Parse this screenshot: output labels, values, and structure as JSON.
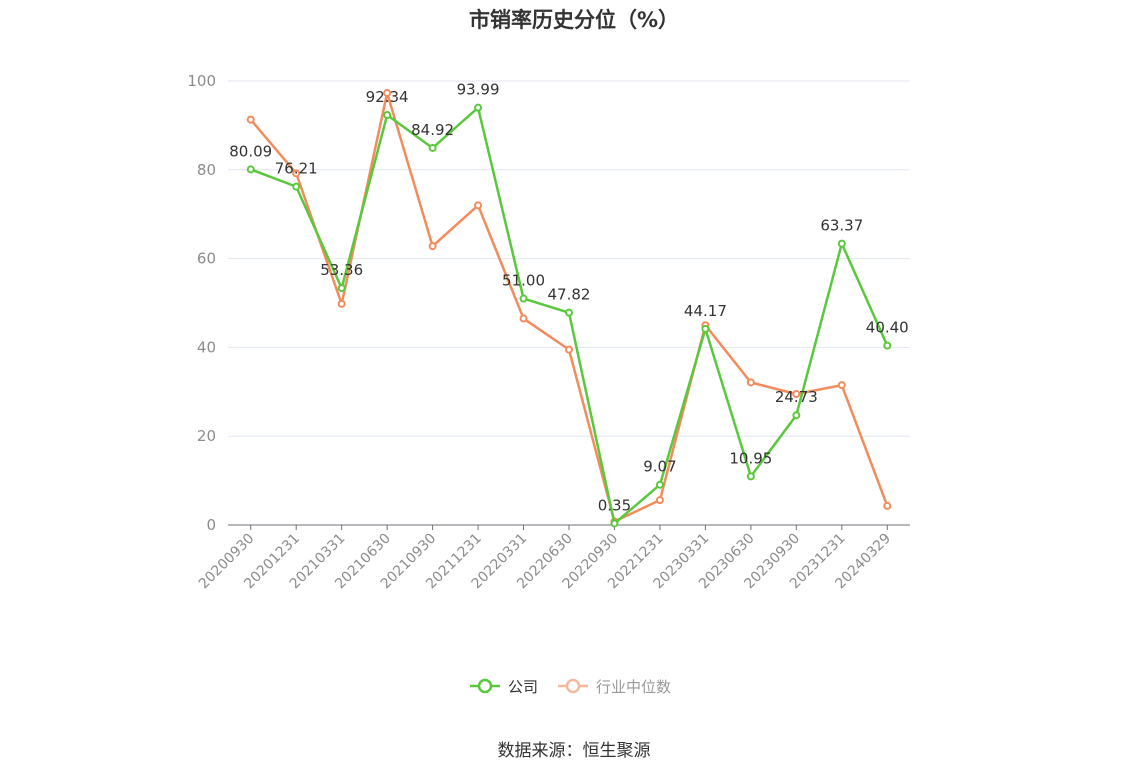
{
  "chart_data": {
    "type": "line",
    "title": "市销率历史分位（%）",
    "source_note": "数据来源：恒生聚源",
    "categories": [
      "20200930",
      "20201231",
      "20210331",
      "20210630",
      "20210930",
      "20211231",
      "20220331",
      "20220630",
      "20220930",
      "20221231",
      "20230331",
      "20230630",
      "20230930",
      "20231231",
      "20240329"
    ],
    "ylim": [
      0,
      100
    ],
    "yticks": [
      0,
      20,
      40,
      60,
      80,
      100
    ],
    "grid": true,
    "legend_placement": "bottom",
    "series": [
      {
        "name": "公司",
        "color": "#5ac83c",
        "values": [
          80.09,
          76.21,
          53.36,
          92.34,
          84.92,
          93.99,
          51.0,
          47.82,
          0.35,
          9.07,
          44.17,
          10.95,
          24.73,
          63.37,
          40.4
        ],
        "labels": [
          "80.09",
          "76.21",
          "53.36",
          "92.34",
          "84.92",
          "93.99",
          "51.00",
          "47.82",
          "0.35",
          "9.07",
          "44.17",
          "10.95",
          "24.73",
          "63.37",
          "40.40"
        ]
      },
      {
        "name": "行业中位数",
        "color": "#f28c5c",
        "values": [
          91.3,
          79.2,
          49.8,
          97.3,
          62.8,
          72.0,
          46.5,
          39.5,
          0.8,
          5.6,
          45.0,
          32.1,
          29.5,
          31.5,
          4.3
        ]
      }
    ]
  },
  "colors": {
    "axis": "#6e7079",
    "grid": "#e0e6f1",
    "tick_text": "#8c8c8c",
    "label_text": "#333333",
    "legend_inactive_text": "#999999",
    "legend_inactive_icon": "#f4b99d"
  }
}
